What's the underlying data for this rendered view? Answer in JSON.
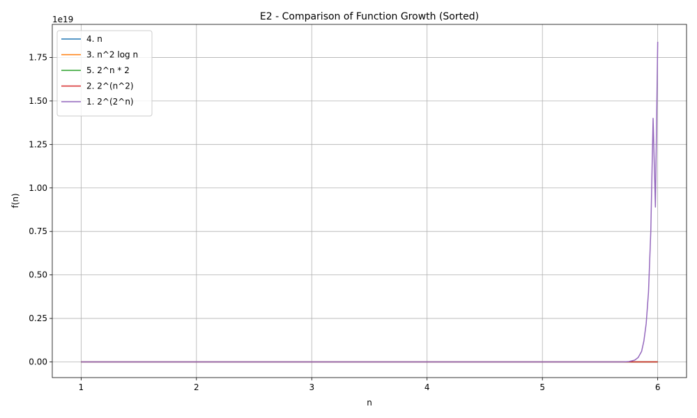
{
  "chart_data": {
    "type": "line",
    "title": "E2 - Comparison of Function Growth (Sorted)",
    "xlabel": "n",
    "ylabel": "f(n)",
    "y_offset_text": "1e19",
    "xlim": [
      0.75,
      6.25
    ],
    "ylim": [
      -0.09,
      1.94
    ],
    "x_ticks": [
      1,
      2,
      3,
      4,
      5,
      6
    ],
    "x_tick_labels": [
      "1",
      "2",
      "3",
      "4",
      "5",
      "6"
    ],
    "y_ticks": [
      0,
      0.25,
      0.5,
      0.75,
      1.0,
      1.25,
      1.5,
      1.75
    ],
    "y_tick_labels": [
      "0.00",
      "0.25",
      "0.50",
      "0.75",
      "1.00",
      "1.25",
      "1.50",
      "1.75"
    ],
    "grid": true,
    "legend_position": "top-left",
    "y_scale_factor": 1e+19,
    "series": [
      {
        "name": "4. n",
        "color": "#1f77b4",
        "x": [
          1,
          6
        ],
        "values": [
          0,
          0
        ]
      },
      {
        "name": "3. n^2 log n",
        "color": "#ff7f0e",
        "x": [
          1,
          6
        ],
        "values": [
          0,
          0
        ]
      },
      {
        "name": "5. 2^n * 2",
        "color": "#2ca02c",
        "x": [
          1,
          6
        ],
        "values": [
          0,
          0
        ]
      },
      {
        "name": "2. 2^(n^2)",
        "color": "#d62728",
        "x": [
          1,
          6
        ],
        "values": [
          0,
          6.9e-09
        ]
      },
      {
        "name": "1. 2^(2^n)",
        "color": "#9467bd",
        "x": [
          1,
          5.7,
          5.75,
          5.8,
          5.83,
          5.86,
          5.88,
          5.9,
          5.92,
          5.94,
          5.96,
          5.98,
          6.0
        ],
        "values": [
          0,
          0.0001,
          0.002,
          0.01,
          0.025,
          0.06,
          0.12,
          0.22,
          0.4,
          0.75,
          1.4,
          0.89,
          1.84
        ]
      }
    ]
  }
}
